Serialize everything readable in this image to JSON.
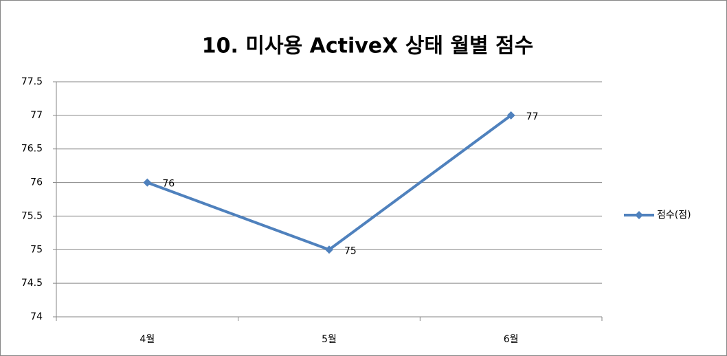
{
  "chart_data": {
    "type": "line",
    "title": "10. 미사용 ActiveX 상태 월별 점수",
    "categories": [
      "4월",
      "5월",
      "6월"
    ],
    "series": [
      {
        "name": "점수(점)",
        "color": "#4f81bd",
        "values": [
          76,
          75,
          77
        ]
      }
    ],
    "ylim": [
      74,
      77.5
    ],
    "yticks": [
      74,
      74.5,
      75,
      75.5,
      76,
      76.5,
      77,
      77.5
    ],
    "grid": true,
    "legend": "right",
    "data_labels": true
  }
}
